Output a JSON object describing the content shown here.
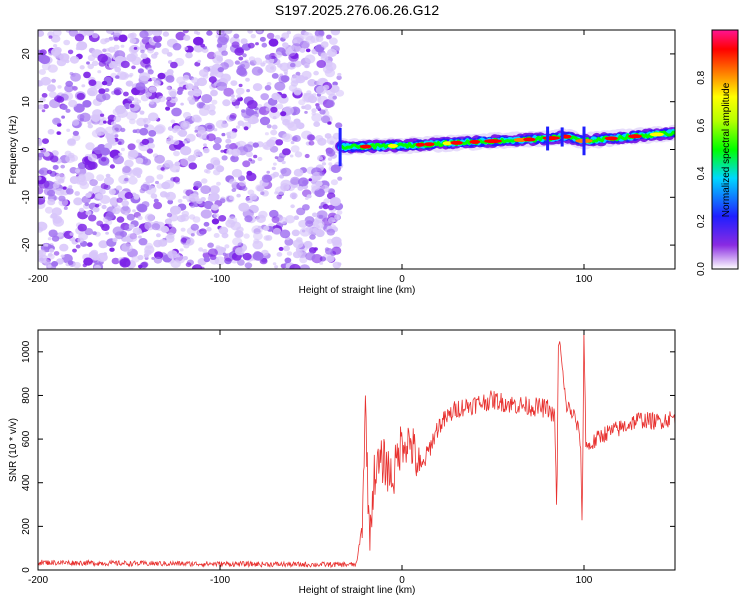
{
  "chart_data": [
    {
      "type": "heatmap",
      "title": "S197.2025.276.06.26.G12",
      "xlabel": "Height of straight line (km)",
      "ylabel": "Frequency (Hz)",
      "xlim": [
        -200,
        150
      ],
      "ylim": [
        -25,
        25
      ],
      "xticks": [
        -200,
        -100,
        0,
        100
      ],
      "yticks": [
        -20,
        -10,
        0,
        10,
        20
      ],
      "noise_region_x": [
        -200,
        -34
      ],
      "signal_line": {
        "x": [
          -34,
          -20,
          0,
          20,
          40,
          60,
          80,
          90,
          100,
          120,
          150
        ],
        "freq": [
          0.5,
          0.6,
          0.8,
          1.2,
          1.6,
          1.9,
          2.3,
          2.7,
          1.8,
          2.5,
          3.5
        ]
      },
      "colorbar": {
        "label": "Normalized spectral amplitude",
        "range": [
          0.0,
          1.0
        ],
        "ticks": [
          "0.0",
          "0.2",
          "0.4",
          "0.6",
          "0.8"
        ],
        "colors": [
          "#ffffff",
          "#8a2be2",
          "#1f1fff",
          "#00d8ff",
          "#00ff00",
          "#ffff00",
          "#ff7f00",
          "#ff0000",
          "#ff1493"
        ]
      }
    },
    {
      "type": "line",
      "xlabel": "Height of straight line (km)",
      "ylabel": "SNR (10 * v/v)",
      "xlim": [
        -200,
        150
      ],
      "ylim": [
        0,
        1100
      ],
      "xticks": [
        -200,
        -100,
        0,
        100
      ],
      "yticks": [
        0,
        200,
        400,
        600,
        800,
        1000
      ],
      "color": "#e8312f",
      "series": [
        {
          "name": "SNR",
          "x": [
            -200,
            -150,
            -100,
            -50,
            -25,
            -22,
            -20,
            -18,
            -15,
            -10,
            -5,
            0,
            5,
            10,
            20,
            30,
            40,
            50,
            60,
            70,
            80,
            84,
            85,
            86,
            90,
            95,
            98,
            99,
            100,
            101,
            102,
            110,
            120,
            130,
            140,
            150
          ],
          "values": [
            35,
            30,
            28,
            25,
            25,
            200,
            760,
            150,
            450,
            500,
            420,
            600,
            580,
            450,
            660,
            740,
            760,
            780,
            760,
            750,
            740,
            700,
            230,
            1090,
            760,
            700,
            600,
            200,
            1110,
            600,
            560,
            620,
            650,
            690,
            680,
            700
          ]
        }
      ]
    }
  ]
}
